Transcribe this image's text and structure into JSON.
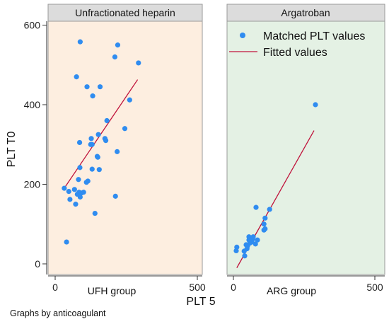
{
  "chart_data": {
    "type": "scatter",
    "title": "",
    "ylabel": "PLT T0",
    "xlabel": "PLT 5",
    "note": "Graphs by anticoagulant",
    "ylim": [
      0,
      600
    ],
    "yticks": [
      "0",
      "200",
      "400",
      "600"
    ],
    "xlim": [
      0,
      500
    ],
    "xticks": [
      "0",
      "500"
    ],
    "legend": {
      "position": "top-right",
      "points_label": "Matched PLT values",
      "line_label": "Fitted values"
    },
    "colors": {
      "points": "#2f8cf0",
      "fit_line": "#c0143c",
      "panel1_bg": "#fdeee0",
      "panel2_bg": "#e4f1e4",
      "strip_bg": "#dcdcdc"
    },
    "panels": [
      {
        "strip": "Unfractionated heparin",
        "group_label": "UFH group",
        "points": [
          [
            32,
            190
          ],
          [
            40,
            55
          ],
          [
            48,
            182
          ],
          [
            52,
            162
          ],
          [
            68,
            187
          ],
          [
            72,
            150
          ],
          [
            78,
            175
          ],
          [
            82,
            212
          ],
          [
            84,
            180
          ],
          [
            86,
            305
          ],
          [
            87,
            242
          ],
          [
            88,
            168
          ],
          [
            88,
            558
          ],
          [
            92,
            178
          ],
          [
            75,
            470
          ],
          [
            100,
            180
          ],
          [
            110,
            205
          ],
          [
            115,
            208
          ],
          [
            112,
            445
          ],
          [
            125,
            300
          ],
          [
            127,
            315
          ],
          [
            130,
            300
          ],
          [
            130,
            238
          ],
          [
            132,
            422
          ],
          [
            140,
            127
          ],
          [
            148,
            270
          ],
          [
            150,
            268
          ],
          [
            152,
            325
          ],
          [
            155,
            237
          ],
          [
            158,
            445
          ],
          [
            175,
            315
          ],
          [
            178,
            310
          ],
          [
            182,
            360
          ],
          [
            210,
            520
          ],
          [
            212,
            170
          ],
          [
            218,
            282
          ],
          [
            220,
            550
          ],
          [
            245,
            340
          ],
          [
            262,
            412
          ],
          [
            293,
            505
          ]
        ],
        "fit": [
          [
            30,
            188
          ],
          [
            290,
            463
          ]
        ]
      },
      {
        "strip": "Argatroban",
        "group_label": "ARG group",
        "points": [
          [
            10,
            33
          ],
          [
            12,
            42
          ],
          [
            38,
            32
          ],
          [
            40,
            20
          ],
          [
            45,
            48
          ],
          [
            48,
            38
          ],
          [
            50,
            45
          ],
          [
            55,
            60
          ],
          [
            55,
            68
          ],
          [
            58,
            52
          ],
          [
            62,
            58
          ],
          [
            65,
            55
          ],
          [
            68,
            62
          ],
          [
            70,
            68
          ],
          [
            78,
            50
          ],
          [
            80,
            142
          ],
          [
            85,
            60
          ],
          [
            108,
            85
          ],
          [
            108,
            100
          ],
          [
            112,
            115
          ],
          [
            112,
            88
          ],
          [
            128,
            137
          ],
          [
            290,
            400
          ]
        ],
        "fit": [
          [
            12,
            -10
          ],
          [
            285,
            335
          ]
        ]
      }
    ]
  }
}
